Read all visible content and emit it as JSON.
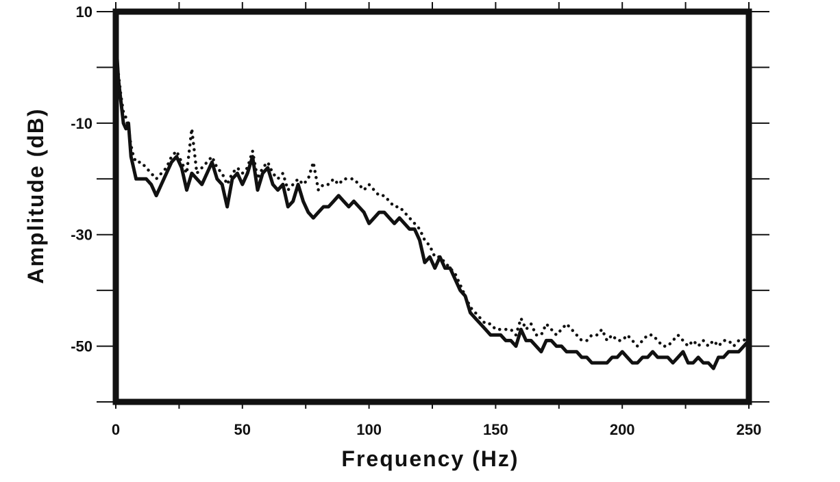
{
  "chart_data": {
    "type": "line",
    "title": "",
    "xlabel": "Frequency (Hz)",
    "ylabel": "Amplitude (dB)",
    "xlim": [
      0,
      250
    ],
    "ylim": [
      -60,
      10
    ],
    "x_ticks": [
      0,
      50,
      100,
      150,
      200,
      250
    ],
    "x_tick_labels": [
      "0",
      "50",
      "100",
      "150",
      "200",
      "250"
    ],
    "y_ticks": [
      10,
      -10,
      -30,
      -50
    ],
    "y_tick_labels": [
      "10",
      "-10",
      "-30",
      "-50"
    ],
    "grid": false,
    "series": [
      {
        "style": "solid",
        "color": "#111111",
        "x": [
          0.5,
          1,
          2,
          3,
          4,
          5,
          6,
          7,
          8,
          10,
          12,
          14,
          16,
          18,
          20,
          22,
          24,
          26,
          28,
          30,
          32,
          34,
          36,
          38,
          40,
          42,
          44,
          46,
          48,
          50,
          52,
          54,
          56,
          58,
          60,
          62,
          64,
          66,
          68,
          70,
          72,
          74,
          76,
          78,
          80,
          82,
          84,
          86,
          88,
          90,
          92,
          94,
          96,
          98,
          100,
          102,
          104,
          106,
          108,
          110,
          112,
          114,
          116,
          118,
          120,
          122,
          124,
          126,
          128,
          130,
          132,
          134,
          136,
          138,
          140,
          142,
          144,
          146,
          148,
          150,
          152,
          154,
          156,
          158,
          160,
          162,
          164,
          166,
          168,
          170,
          172,
          174,
          176,
          178,
          180,
          182,
          184,
          186,
          188,
          190,
          192,
          194,
          196,
          198,
          200,
          202,
          204,
          206,
          208,
          210,
          212,
          214,
          216,
          218,
          220,
          222,
          224,
          226,
          228,
          230,
          232,
          234,
          236,
          238,
          240,
          242,
          244,
          246,
          248,
          250
        ],
        "y": [
          2,
          -2,
          -6,
          -10,
          -11,
          -10,
          -16,
          -18,
          -20,
          -20,
          -20,
          -21,
          -23,
          -21,
          -19,
          -17,
          -16,
          -18,
          -22,
          -19,
          -20,
          -21,
          -19,
          -17,
          -20,
          -21,
          -25,
          -20,
          -19,
          -21,
          -19,
          -16,
          -22,
          -19,
          -18,
          -21,
          -22,
          -21,
          -25,
          -24,
          -21,
          -24,
          -26,
          -27,
          -26,
          -25,
          -25,
          -24,
          -23,
          -24,
          -25,
          -24,
          -25,
          -26,
          -28,
          -27,
          -26,
          -26,
          -27,
          -28,
          -27,
          -28,
          -29,
          -29,
          -31,
          -35,
          -34,
          -36,
          -34,
          -36,
          -36,
          -38,
          -40,
          -41,
          -44,
          -45,
          -46,
          -47,
          -48,
          -48,
          -48,
          -49,
          -49,
          -50,
          -47,
          -49,
          -49,
          -50,
          -51,
          -49,
          -49,
          -50,
          -50,
          -51,
          -51,
          -51,
          -52,
          -52,
          -53,
          -53,
          -53,
          -53,
          -52,
          -52,
          -51,
          -52,
          -53,
          -53,
          -52,
          -52,
          -51,
          -52,
          -52,
          -52,
          -53,
          -52,
          -51,
          -53,
          -53,
          -52,
          -53,
          -53,
          -54,
          -52,
          -52,
          -51,
          -51,
          -51,
          -50,
          -49
        ]
      },
      {
        "style": "dotted",
        "color": "#111111",
        "x": [
          0.5,
          1,
          2,
          3,
          4,
          5,
          6,
          7,
          8,
          10,
          12,
          14,
          16,
          18,
          20,
          22,
          24,
          26,
          28,
          30,
          32,
          34,
          36,
          38,
          40,
          42,
          44,
          46,
          48,
          50,
          52,
          54,
          56,
          58,
          60,
          62,
          64,
          66,
          68,
          70,
          72,
          74,
          76,
          78,
          80,
          82,
          84,
          86,
          88,
          90,
          92,
          94,
          96,
          98,
          100,
          102,
          104,
          106,
          108,
          110,
          112,
          114,
          116,
          118,
          120,
          122,
          124,
          126,
          128,
          130,
          132,
          134,
          136,
          138,
          140,
          142,
          144,
          146,
          148,
          150,
          152,
          154,
          156,
          158,
          160,
          162,
          164,
          166,
          168,
          170,
          172,
          174,
          176,
          178,
          180,
          182,
          184,
          186,
          188,
          190,
          192,
          194,
          196,
          198,
          200,
          202,
          204,
          206,
          208,
          210,
          212,
          214,
          216,
          218,
          220,
          222,
          224,
          226,
          228,
          230,
          232,
          234,
          236,
          238,
          240,
          242,
          244,
          246,
          248,
          250
        ],
        "y": [
          1,
          -1,
          -5,
          -8,
          -9,
          -11,
          -14,
          -16,
          -17,
          -17,
          -18,
          -19,
          -20,
          -19,
          -18,
          -16,
          -15,
          -17,
          -19,
          -11,
          -19,
          -18,
          -17,
          -16,
          -18,
          -19,
          -21,
          -19,
          -18,
          -19,
          -18,
          -15,
          -20,
          -18,
          -17,
          -19,
          -20,
          -19,
          -22,
          -21,
          -20,
          -21,
          -20,
          -17,
          -22,
          -21,
          -21,
          -20,
          -21,
          -20,
          -20,
          -20,
          -21,
          -22,
          -21,
          -22,
          -23,
          -23,
          -24,
          -25,
          -25,
          -26,
          -27,
          -28,
          -29,
          -31,
          -32,
          -34,
          -34,
          -35,
          -36,
          -37,
          -39,
          -41,
          -43,
          -44,
          -45,
          -46,
          -46,
          -47,
          -47,
          -47,
          -47,
          -48,
          -45,
          -47,
          -46,
          -48,
          -48,
          -46,
          -47,
          -48,
          -47,
          -46,
          -47,
          -48,
          -49,
          -49,
          -48,
          -48,
          -47,
          -49,
          -48,
          -49,
          -49,
          -48,
          -49,
          -50,
          -49,
          -48,
          -48,
          -49,
          -50,
          -50,
          -49,
          -48,
          -49,
          -50,
          -49,
          -50,
          -49,
          -50,
          -49,
          -50,
          -49,
          -49,
          -50,
          -49,
          -49,
          -48
        ]
      }
    ]
  }
}
